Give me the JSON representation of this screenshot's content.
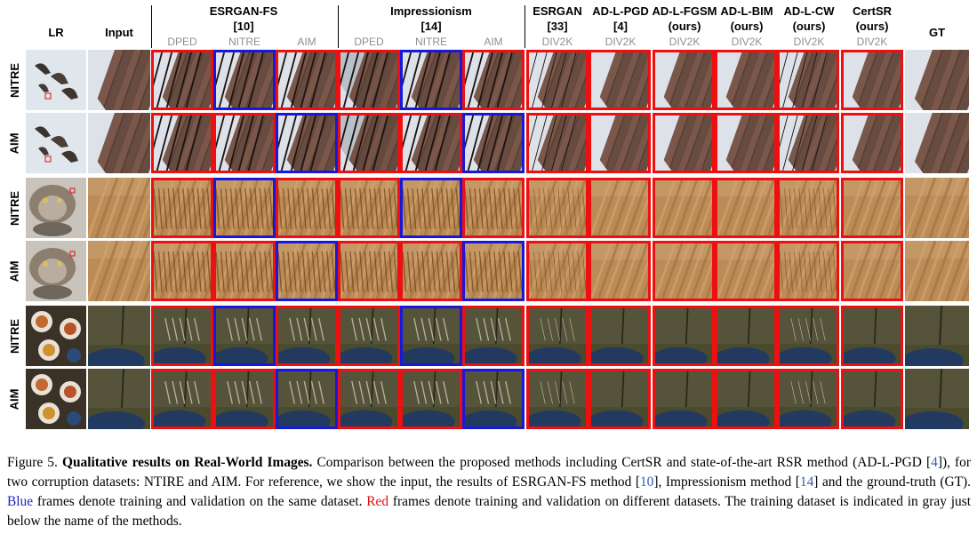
{
  "columns": {
    "lr": "LR",
    "input": "Input",
    "esrgan_fs": {
      "name": "ESRGAN-FS",
      "ref": "[10]",
      "datasets": [
        "DPED",
        "NITRE",
        "AIM"
      ]
    },
    "impressionism": {
      "name": "Impressionism",
      "ref": "[14]",
      "datasets": [
        "DPED",
        "NITRE",
        "AIM"
      ]
    },
    "esrgan": {
      "name": "ESRGAN",
      "ref": "[33]",
      "dataset": "DIV2K"
    },
    "ad_l_pgd": {
      "name": "AD-L-PGD",
      "ref": "[4]",
      "dataset": "DIV2K"
    },
    "ad_l_fgsm": {
      "name": "AD-L-FGSM",
      "ref": "(ours)",
      "dataset": "DIV2K"
    },
    "ad_l_bim": {
      "name": "AD-L-BIM",
      "ref": "(ours)",
      "dataset": "DIV2K"
    },
    "ad_l_cw": {
      "name": "AD-L-CW",
      "ref": "(ours)",
      "dataset": "DIV2K"
    },
    "certsr": {
      "name": "CertSR",
      "ref": "(ours)",
      "dataset": "DIV2K"
    },
    "gt": "GT"
  },
  "rows": [
    "NITRE",
    "AIM",
    "NITRE",
    "AIM",
    "NITRE",
    "AIM"
  ],
  "caption": {
    "figure_label": "Figure 5.",
    "title": "Qualitative results on Real-World Images.",
    "text1": "Comparison between the proposed methods including CertSR and state-of-the-art RSR method (AD-L-PGD [",
    "ref4": "4",
    "text2": "]), for two corruption datasets: NTIRE and AIM. For reference, we show the input, the results of ESRGAN-FS method [",
    "ref10": "10",
    "text3": "], Impressionism method [",
    "ref14": "14",
    "text4": "] and the ground-truth (GT).",
    "blue_word": "Blue",
    "text5": "frames denote training and validation on the same dataset.",
    "red_word": "Red",
    "text6": "frames denote training and validation on different datasets. The training dataset is indicated in gray just below the name of the methods."
  }
}
